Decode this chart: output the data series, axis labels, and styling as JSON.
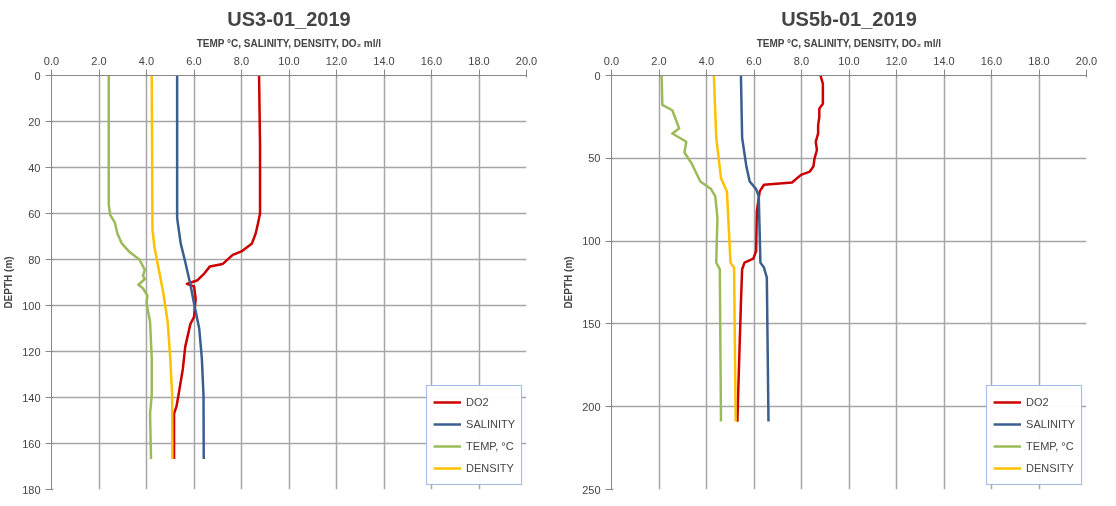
{
  "chart_data": [
    {
      "type": "line",
      "title": "US3-01_2019",
      "xlabel": "TEMP °C, SALINITY, DENSITY, DO₂ ml/l",
      "ylabel": "DEPTH (m)",
      "xlim": [
        0,
        20
      ],
      "xticks": [
        {
          "value": 0,
          "label": "0.0"
        },
        {
          "value": 2,
          "label": "2.0"
        },
        {
          "value": 4,
          "label": "4.0"
        },
        {
          "value": 6,
          "label": "6.0"
        },
        {
          "value": 8,
          "label": "8.0"
        },
        {
          "value": 10,
          "label": "10.0"
        },
        {
          "value": 12,
          "label": "12.0"
        },
        {
          "value": 14,
          "label": "14.0"
        },
        {
          "value": 16,
          "label": "16.0"
        },
        {
          "value": 18,
          "label": "18.0"
        },
        {
          "value": 20,
          "label": "20.0"
        }
      ],
      "ylim": [
        180,
        0
      ],
      "yticks": [
        0,
        20,
        40,
        60,
        80,
        100,
        120,
        140,
        160,
        180
      ],
      "grid": true,
      "legend": "bottom right",
      "line_style": "solid",
      "series": [
        {
          "name": "DO2",
          "color": "#cc0000",
          "x": [
            8.74,
            8.78,
            8.78,
            8.7,
            8.6,
            8.44,
            8.0,
            7.63,
            7.2,
            6.67,
            6.44,
            6.15,
            5.7,
            6.0,
            6.07,
            6.0,
            5.85,
            5.63,
            5.53,
            5.33,
            5.26,
            5.16,
            5.16
          ],
          "values": [
            0,
            30,
            60,
            64,
            68.6,
            73,
            76.5,
            78,
            82,
            83,
            86,
            89,
            90.6,
            91.7,
            97,
            105,
            108,
            118,
            127.6,
            140,
            144,
            147,
            166.7
          ]
        },
        {
          "name": "SALINITY",
          "color": "#3a5f8f",
          "x": [
            5.29,
            5.29,
            5.44,
            5.63,
            5.85,
            6.0,
            6.22,
            6.33,
            6.4,
            6.41
          ],
          "values": [
            0,
            62,
            73,
            81,
            91,
            99,
            110,
            123,
            139,
            166.7
          ]
        },
        {
          "name": "TEMP, °C",
          "color": "#9bbb59",
          "x": [
            2.41,
            2.41,
            2.47,
            2.67,
            2.77,
            2.96,
            3.26,
            3.7,
            3.93,
            3.85,
            3.93,
            3.66,
            3.85,
            4.04,
            4.0,
            4.15,
            4.22,
            4.22,
            4.15,
            4.19
          ],
          "values": [
            0,
            56,
            60.6,
            64,
            68.6,
            73,
            76.5,
            80,
            84.5,
            87,
            88.5,
            91,
            92.5,
            95.7,
            99,
            107,
            123,
            139,
            147,
            166.7
          ]
        },
        {
          "name": "DENSITY",
          "color": "#ffc000",
          "x": [
            4.22,
            4.25,
            4.34,
            4.52,
            4.7,
            4.89,
            5.0,
            5.08,
            5.09
          ],
          "values": [
            0,
            67,
            75,
            84.5,
            94,
            107,
            123,
            139,
            166.7
          ]
        }
      ]
    },
    {
      "type": "line",
      "title": "US5b-01_2019",
      "xlabel": "TEMP °C, SALINITY, DENSITY, DO₂ ml/l",
      "ylabel": "DEPTH (m)",
      "xlim": [
        0,
        20
      ],
      "xticks": [
        {
          "value": 0,
          "label": "0.0"
        },
        {
          "value": 2,
          "label": "2.0"
        },
        {
          "value": 4,
          "label": "4.0"
        },
        {
          "value": 6,
          "label": "6.0"
        },
        {
          "value": 8,
          "label": "8.0"
        },
        {
          "value": 10,
          "label": "10.0"
        },
        {
          "value": 12,
          "label": "12.0"
        },
        {
          "value": 14,
          "label": "14.0"
        },
        {
          "value": 16,
          "label": "16.0"
        },
        {
          "value": 18,
          "label": "18.0"
        },
        {
          "value": 20,
          "label": "20.0"
        }
      ],
      "ylim": [
        250,
        0
      ],
      "yticks": [
        0,
        50,
        100,
        150,
        200,
        250
      ],
      "grid": true,
      "legend": "bottom right",
      "line_style": "solid",
      "series": [
        {
          "name": "DO2",
          "color": "#cc0000",
          "x": [
            8.8,
            8.9,
            8.9,
            8.75,
            8.75,
            8.7,
            8.7,
            8.6,
            8.65,
            8.55,
            8.5,
            8.35,
            7.98,
            7.6,
            6.42,
            6.24,
            6.12,
            6.09,
            5.97,
            5.6,
            5.5,
            5.45,
            5.38,
            5.32,
            5.3
          ],
          "values": [
            0,
            5,
            17,
            20,
            25,
            30,
            35,
            40,
            45,
            50,
            55,
            58,
            60,
            64.6,
            66,
            70,
            82,
            106,
            110.6,
            113,
            117,
            137,
            170,
            199,
            209
          ]
        },
        {
          "name": "SALINITY",
          "color": "#3a5f8f",
          "x": [
            5.45,
            5.5,
            5.68,
            5.82,
            6.09,
            6.2,
            6.27,
            6.42,
            6.54,
            6.61
          ],
          "values": [
            0,
            37.6,
            55,
            64,
            68.6,
            73,
            113,
            116,
            122,
            209
          ]
        },
        {
          "name": "TEMP, °C",
          "color": "#9bbb59",
          "x": [
            2.11,
            2.14,
            2.56,
            2.85,
            2.56,
            3.15,
            3.07,
            3.37,
            3.74,
            4.19,
            4.37,
            4.46,
            4.41,
            4.56,
            4.61
          ],
          "values": [
            0,
            17.7,
            21,
            32,
            35,
            40,
            46.5,
            53,
            64,
            68.6,
            73,
            86,
            113,
            117,
            209
          ]
        },
        {
          "name": "DENSITY",
          "color": "#ffc000",
          "x": [
            4.31,
            4.41,
            4.61,
            4.86,
            5.01,
            5.16,
            5.23
          ],
          "values": [
            0,
            37.6,
            62,
            70,
            113,
            116,
            209
          ]
        }
      ]
    }
  ]
}
